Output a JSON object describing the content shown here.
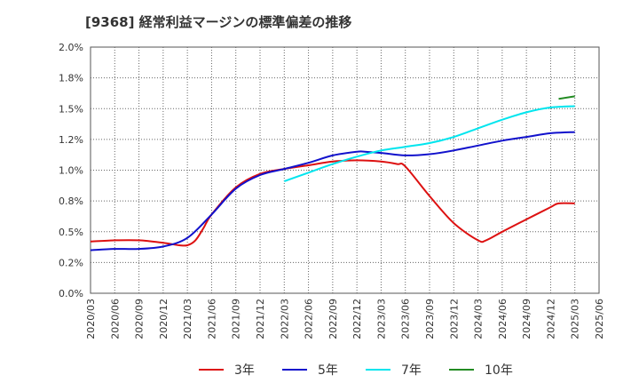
{
  "chart_data": {
    "type": "line",
    "title": "[9368]  経常利益マージンの標準偏差の推移",
    "xlabel": "",
    "ylabel": "",
    "ylim": [
      0,
      2.0
    ],
    "y_ticks": [
      "0.0%",
      "0.2%",
      "0.5%",
      "0.8%",
      "1.0%",
      "1.2%",
      "1.5%",
      "1.8%",
      "2.0%"
    ],
    "x_ticks": [
      "2020/03",
      "2020/06",
      "2020/09",
      "2020/12",
      "2021/03",
      "2021/06",
      "2021/09",
      "2021/12",
      "2022/03",
      "2022/06",
      "2022/09",
      "2022/12",
      "2023/03",
      "2023/06",
      "2023/09",
      "2023/12",
      "2024/03",
      "2024/06",
      "2024/09",
      "2024/12",
      "2025/03",
      "2025/06"
    ],
    "grid": true,
    "legend_position": "bottom",
    "series": [
      {
        "name": "3年",
        "color": "#dd1111",
        "x": [
          "2020/03",
          "2020/06",
          "2020/09",
          "2020/12",
          "2021/01",
          "2021/02",
          "2021/03",
          "2021/04",
          "2021/05",
          "2021/06",
          "2021/09",
          "2021/12",
          "2022/03",
          "2022/06",
          "2022/09",
          "2022/12",
          "2023/03",
          "2023/05",
          "2023/06",
          "2023/09",
          "2023/12",
          "2024/03",
          "2024/04",
          "2024/06",
          "2024/09",
          "2024/12",
          "2025/01",
          "2025/03"
        ],
        "values": [
          0.42,
          0.43,
          0.43,
          0.41,
          0.4,
          0.39,
          0.39,
          0.43,
          0.53,
          0.64,
          0.86,
          0.97,
          1.01,
          1.04,
          1.07,
          1.08,
          1.07,
          1.05,
          1.03,
          0.79,
          0.57,
          0.43,
          0.43,
          0.5,
          0.6,
          0.7,
          0.73,
          0.73
        ]
      },
      {
        "name": "5年",
        "color": "#1111cc",
        "x": [
          "2020/03",
          "2020/06",
          "2020/09",
          "2020/12",
          "2021/03",
          "2021/06",
          "2021/09",
          "2021/12",
          "2022/03",
          "2022/06",
          "2022/09",
          "2022/12",
          "2023/01",
          "2023/03",
          "2023/06",
          "2023/09",
          "2023/12",
          "2024/03",
          "2024/06",
          "2024/09",
          "2024/12",
          "2025/03"
        ],
        "values": [
          0.35,
          0.36,
          0.36,
          0.38,
          0.45,
          0.64,
          0.85,
          0.96,
          1.01,
          1.06,
          1.12,
          1.15,
          1.15,
          1.14,
          1.12,
          1.13,
          1.16,
          1.2,
          1.24,
          1.27,
          1.3,
          1.31
        ]
      },
      {
        "name": "7年",
        "color": "#00e5ee",
        "x": [
          "2022/03",
          "2022/06",
          "2022/09",
          "2022/12",
          "2023/03",
          "2023/06",
          "2023/09",
          "2023/12",
          "2024/03",
          "2024/06",
          "2024/09",
          "2024/12",
          "2025/03"
        ],
        "values": [
          0.91,
          0.98,
          1.05,
          1.11,
          1.16,
          1.19,
          1.22,
          1.27,
          1.34,
          1.41,
          1.47,
          1.51,
          1.52
        ]
      },
      {
        "name": "10年",
        "color": "#228b22",
        "x": [
          "2025/01",
          "2025/03"
        ],
        "values": [
          1.58,
          1.6
        ]
      }
    ]
  }
}
